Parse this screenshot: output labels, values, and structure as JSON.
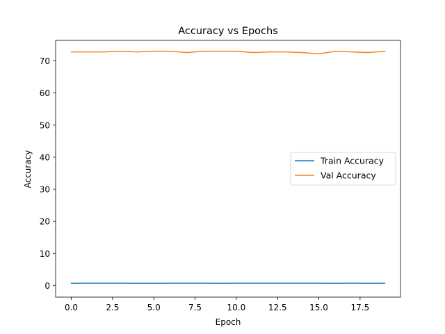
{
  "chart_data": {
    "type": "line",
    "title": "Accuracy vs Epochs",
    "xlabel": "Epoch",
    "ylabel": "Accuracy",
    "xlim": [
      -0.95,
      19.95
    ],
    "ylim": [
      -3.6,
      76.4
    ],
    "xticks": [
      0.0,
      2.5,
      5.0,
      7.5,
      10.0,
      12.5,
      15.0,
      17.5
    ],
    "xtick_labels": [
      "0.0",
      "2.5",
      "5.0",
      "7.5",
      "10.0",
      "12.5",
      "15.0",
      "17.5"
    ],
    "yticks": [
      0,
      10,
      20,
      30,
      40,
      50,
      60,
      70
    ],
    "ytick_labels": [
      "0",
      "10",
      "20",
      "30",
      "40",
      "50",
      "60",
      "70"
    ],
    "grid": false,
    "legend_position": "center-right",
    "x": [
      0,
      1,
      2,
      3,
      4,
      5,
      6,
      7,
      8,
      9,
      10,
      11,
      12,
      13,
      14,
      15,
      16,
      17,
      18,
      19
    ],
    "series": [
      {
        "name": "Train Accuracy",
        "color": "#1f77b4",
        "values": [
          0.72,
          0.73,
          0.73,
          0.73,
          0.71,
          0.72,
          0.73,
          0.73,
          0.73,
          0.72,
          0.73,
          0.73,
          0.73,
          0.73,
          0.73,
          0.73,
          0.72,
          0.73,
          0.72,
          0.73
        ]
      },
      {
        "name": "Val Accuracy",
        "color": "#ff7f0e",
        "values": [
          72.8,
          72.8,
          72.8,
          73.0,
          72.8,
          73.0,
          73.0,
          72.6,
          73.0,
          73.0,
          73.0,
          72.6,
          72.8,
          72.8,
          72.6,
          72.2,
          73.0,
          72.8,
          72.6,
          73.0
        ]
      }
    ]
  }
}
